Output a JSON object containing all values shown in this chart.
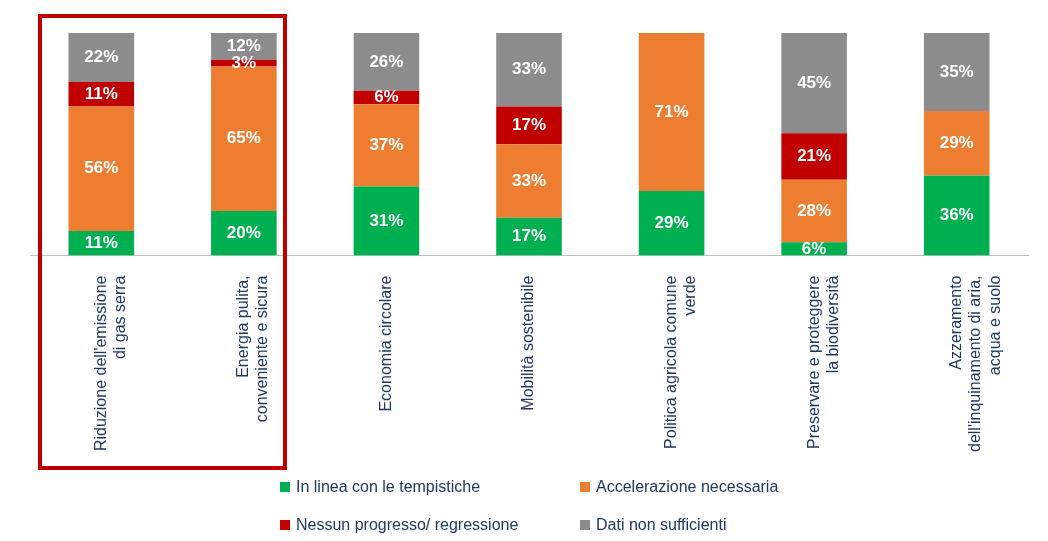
{
  "chart_data": {
    "type": "bar",
    "stacked": true,
    "legend": "bottom",
    "grid": false,
    "tick_labels": "x",
    "categories": [
      "Riduzione dell'emissione\ndi gas serra",
      "Energia pulita,\nconveniente e sicura",
      "Economia circolare",
      "Mobilità sostenibile",
      "Politica agricola comune\nverde",
      "Preservare e proteggere\nla biodiversità",
      "Azzeramento\ndell'inquinamento di aria,\nacqua e suolo"
    ],
    "series": [
      {
        "name": "In linea con le tempistiche",
        "color": "#00b050",
        "values": [
          11,
          20,
          31,
          17,
          29,
          6,
          36
        ],
        "value_labels": [
          "11%",
          "20%",
          "31%",
          "17%",
          "29%",
          "6%",
          "36%"
        ]
      },
      {
        "name": "Accelerazione necessaria",
        "color": "#ed7d31",
        "values": [
          56,
          65,
          37,
          33,
          71,
          28,
          29
        ],
        "value_labels": [
          "56%",
          "65%",
          "37%",
          "33%",
          "71%",
          "28%",
          "29%"
        ]
      },
      {
        "name": "Nessun progresso/ regressione",
        "color": "#c00000",
        "values": [
          11,
          3,
          6,
          17,
          null,
          21,
          null
        ],
        "value_labels": [
          "11%",
          "3%",
          "6%",
          "17%",
          null,
          "21%",
          null
        ]
      },
      {
        "name": "Dati non sufficienti",
        "color": "#8c8c8c",
        "values": [
          22,
          12,
          26,
          33,
          null,
          45,
          35
        ],
        "value_labels": [
          "22%",
          "12%",
          "26%",
          "33%",
          null,
          "45%",
          "35%"
        ]
      }
    ]
  }
}
